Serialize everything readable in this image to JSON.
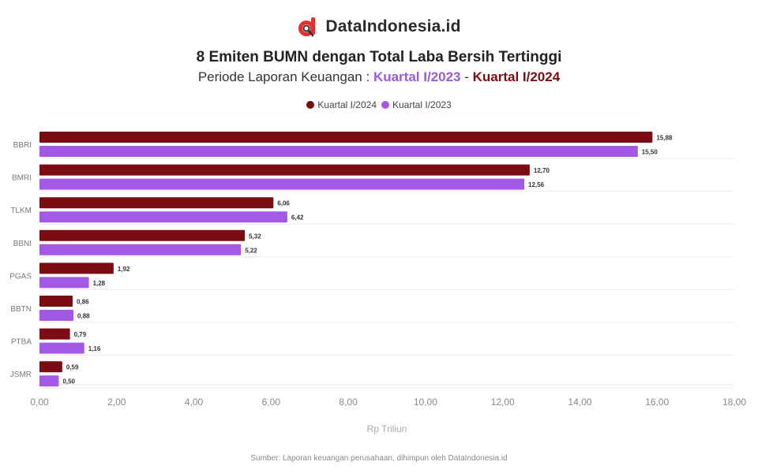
{
  "brand": {
    "name": "DataIndonesia.id",
    "logo_icon": "dataindonesia-logo-icon"
  },
  "header": {
    "title": "8 Emiten BUMN dengan Total Laba Bersih Tertinggi",
    "subtitle_prefix": "Periode Laporan Keuangan : ",
    "period1": "Kuartal I/2023",
    "separator": " - ",
    "period2": "Kuartal I/2024"
  },
  "legend": [
    {
      "label": "Kuartal I/2024",
      "color": "#7b0d12"
    },
    {
      "label": "Kuartal I/2023",
      "color": "#a259e6"
    }
  ],
  "chart_data": {
    "type": "bar",
    "orientation": "horizontal",
    "categories": [
      "BBRI",
      "BMRI",
      "TLKM",
      "BBNI",
      "PGAS",
      "BBTN",
      "PTBA",
      "JSMR"
    ],
    "series": [
      {
        "name": "Kuartal I/2024",
        "color": "#7b0d12",
        "values": [
          15.88,
          12.7,
          6.06,
          5.32,
          1.92,
          0.86,
          0.79,
          0.59
        ],
        "labels": [
          "15,88",
          "12,70",
          "6,06",
          "5,32",
          "1,92",
          "0,86",
          "0,79",
          "0,59"
        ]
      },
      {
        "name": "Kuartal I/2023",
        "color": "#a259e6",
        "values": [
          15.5,
          12.56,
          6.42,
          5.22,
          1.28,
          0.88,
          1.16,
          0.5
        ],
        "labels": [
          "15,50",
          "12,56",
          "6,42",
          "5,22",
          "1,28",
          "0,88",
          "1,16",
          "0,50"
        ]
      }
    ],
    "xlim": [
      0,
      18
    ],
    "xticks": [
      "0,00",
      "2,00",
      "4,00",
      "6,00",
      "8,00",
      "10,00",
      "12,00",
      "14,00",
      "16,00",
      "18,00"
    ],
    "xlabel": "Rp Triliun",
    "ylabel": "",
    "grid": true
  },
  "source": "Sumber: Laporan keuangan perusahaan, dihimpun oleh DataIndonesia.id"
}
